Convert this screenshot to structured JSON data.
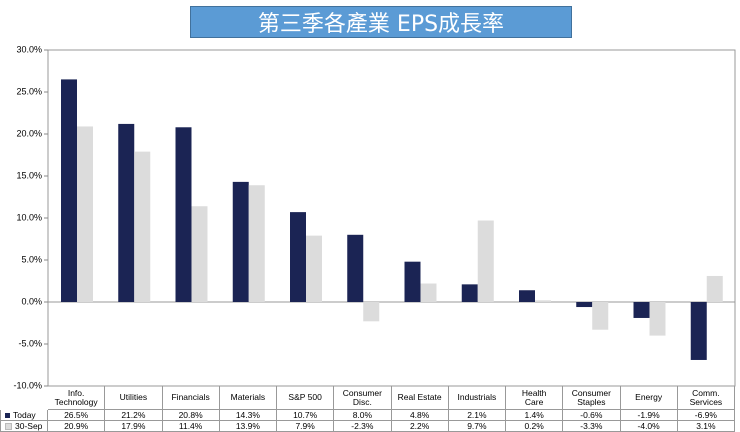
{
  "chart_data": {
    "type": "bar",
    "title": "第三季各產業 EPS成長率",
    "categories": [
      "Info.\nTechnology",
      "Utilities",
      "Financials",
      "Materials",
      "S&P 500",
      "Consumer\nDisc.",
      "Real Estate",
      "Industrials",
      "Health\nCare",
      "Consumer\nStaples",
      "Energy",
      "Comm.\nServices"
    ],
    "series": [
      {
        "name": "Today",
        "color": "#1b2454",
        "values": [
          26.5,
          21.2,
          20.8,
          14.3,
          10.7,
          8.0,
          4.8,
          2.1,
          1.4,
          -0.6,
          -1.9,
          -6.9
        ],
        "value_labels": [
          "26.5%",
          "21.2%",
          "20.8%",
          "14.3%",
          "10.7%",
          "8.0%",
          "4.8%",
          "2.1%",
          "1.4%",
          "-0.6%",
          "-1.9%",
          "-6.9%"
        ]
      },
      {
        "name": "30-Sep",
        "color": "#dcdcdc",
        "values": [
          20.9,
          17.9,
          11.4,
          13.9,
          7.9,
          -2.3,
          2.2,
          9.7,
          0.2,
          -3.3,
          -4.0,
          3.1
        ],
        "value_labels": [
          "20.9%",
          "17.9%",
          "11.4%",
          "13.9%",
          "7.9%",
          "-2.3%",
          "2.2%",
          "9.7%",
          "0.2%",
          "-3.3%",
          "-4.0%",
          "3.1%"
        ]
      }
    ],
    "ylim": [
      -10,
      30
    ],
    "yticks": [
      {
        "value": -10,
        "label": "-10.0%"
      },
      {
        "value": -5,
        "label": "-5.0%"
      },
      {
        "value": 0,
        "label": "0.0%"
      },
      {
        "value": 5,
        "label": "5.0%"
      },
      {
        "value": 10,
        "label": "10.0%"
      },
      {
        "value": 15,
        "label": "15.0%"
      },
      {
        "value": 20,
        "label": "20.0%"
      },
      {
        "value": 25,
        "label": "25.0%"
      },
      {
        "value": 30,
        "label": "30.0%"
      }
    ]
  }
}
